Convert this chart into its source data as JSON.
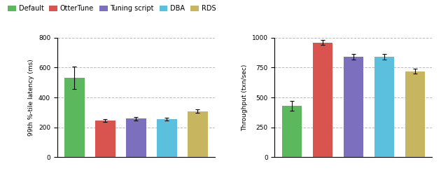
{
  "legend_labels": [
    "Default",
    "OtterTune",
    "Tuning script",
    "DBA",
    "RDS"
  ],
  "colors": [
    "#5cb85c",
    "#d9534f",
    "#7b6fbe",
    "#5bc0de",
    "#c8b560"
  ],
  "left_chart": {
    "ylabel": "99th %-tile latency (ms)",
    "ylim": [
      0,
      800
    ],
    "yticks": [
      0,
      200,
      400,
      600,
      800
    ],
    "values": [
      530,
      245,
      258,
      255,
      308
    ],
    "errors": [
      75,
      10,
      12,
      8,
      12
    ]
  },
  "right_chart": {
    "ylabel": "Throughput (txn/sec)",
    "ylim": [
      0,
      1000
    ],
    "yticks": [
      0,
      250,
      500,
      750,
      1000
    ],
    "values": [
      430,
      960,
      840,
      840,
      720
    ],
    "errors": [
      40,
      20,
      22,
      22,
      22
    ]
  },
  "background_color": "#ffffff",
  "grid_color": "#bbbbbb",
  "bar_width": 0.65,
  "categories": [
    "Default",
    "OtterTune",
    "Tuning script",
    "DBA",
    "RDS"
  ]
}
